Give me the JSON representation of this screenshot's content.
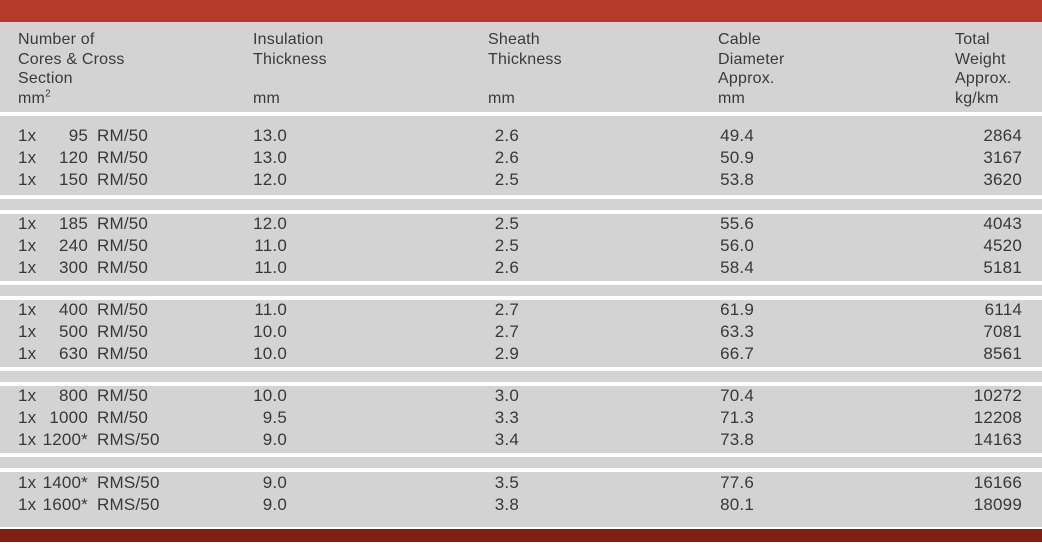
{
  "page": {
    "description": "Single-core cable specification table"
  },
  "colors": {
    "top_bar": "#b73a28",
    "bottom_bar": "#801f15",
    "table_background": "#d3d3d3",
    "text": "#383838",
    "separator": "#ffffff"
  },
  "header": {
    "columns": [
      {
        "id": "cores",
        "lines": [
          "Number of",
          "Cores & Cross",
          "Section",
          "mm"
        ],
        "unit_sup": "2"
      },
      {
        "id": "insulation",
        "lines": [
          "Insulation",
          "Thickness",
          "",
          "mm"
        ]
      },
      {
        "id": "sheath",
        "lines": [
          "Sheath",
          "Thickness",
          "",
          "mm"
        ]
      },
      {
        "id": "diameter",
        "lines": [
          "Cable",
          "Diameter",
          "Approx.",
          "mm"
        ]
      },
      {
        "id": "weight",
        "lines": [
          "Total",
          "Weight",
          "Approx.",
          "kg/km"
        ]
      }
    ]
  },
  "groups": [
    {
      "rows": [
        [
          "1x",
          "95",
          "RM/50",
          "13.0",
          "2.6",
          "49.4",
          "2864"
        ],
        [
          "1x",
          "120",
          "RM/50",
          "13.0",
          "2.6",
          "50.9",
          "3167"
        ],
        [
          "1x",
          "150",
          "RM/50",
          "12.0",
          "2.5",
          "53.8",
          "3620"
        ]
      ]
    },
    {
      "rows": [
        [
          "1x",
          "185",
          "RM/50",
          "12.0",
          "2.5",
          "55.6",
          "4043"
        ],
        [
          "1x",
          "240",
          "RM/50",
          "11.0",
          "2.5",
          "56.0",
          "4520"
        ],
        [
          "1x",
          "300",
          "RM/50",
          "11.0",
          "2.6",
          "58.4",
          "5181"
        ]
      ]
    },
    {
      "rows": [
        [
          "1x",
          "400",
          "RM/50",
          "11.0",
          "2.7",
          "61.9",
          "6114"
        ],
        [
          "1x",
          "500",
          "RM/50",
          "10.0",
          "2.7",
          "63.3",
          "7081"
        ],
        [
          "1x",
          "630",
          "RM/50",
          "10.0",
          "2.9",
          "66.7",
          "8561"
        ]
      ]
    },
    {
      "rows": [
        [
          "1x",
          "800",
          "RM/50",
          "10.0",
          "3.0",
          "70.4",
          "10272"
        ],
        [
          "1x",
          "1000",
          "RM/50",
          "9.5",
          "3.3",
          "71.3",
          "12208"
        ],
        [
          "1x",
          "1200*",
          "RMS/50",
          "9.0",
          "3.4",
          "73.8",
          "14163"
        ]
      ]
    },
    {
      "rows": [
        [
          "1x",
          "1400*",
          "RMS/50",
          "9.0",
          "3.5",
          "77.6",
          "16166"
        ],
        [
          "1x",
          "1600*",
          "RMS/50",
          "9.0",
          "3.8",
          "80.1",
          "18099"
        ]
      ]
    }
  ]
}
